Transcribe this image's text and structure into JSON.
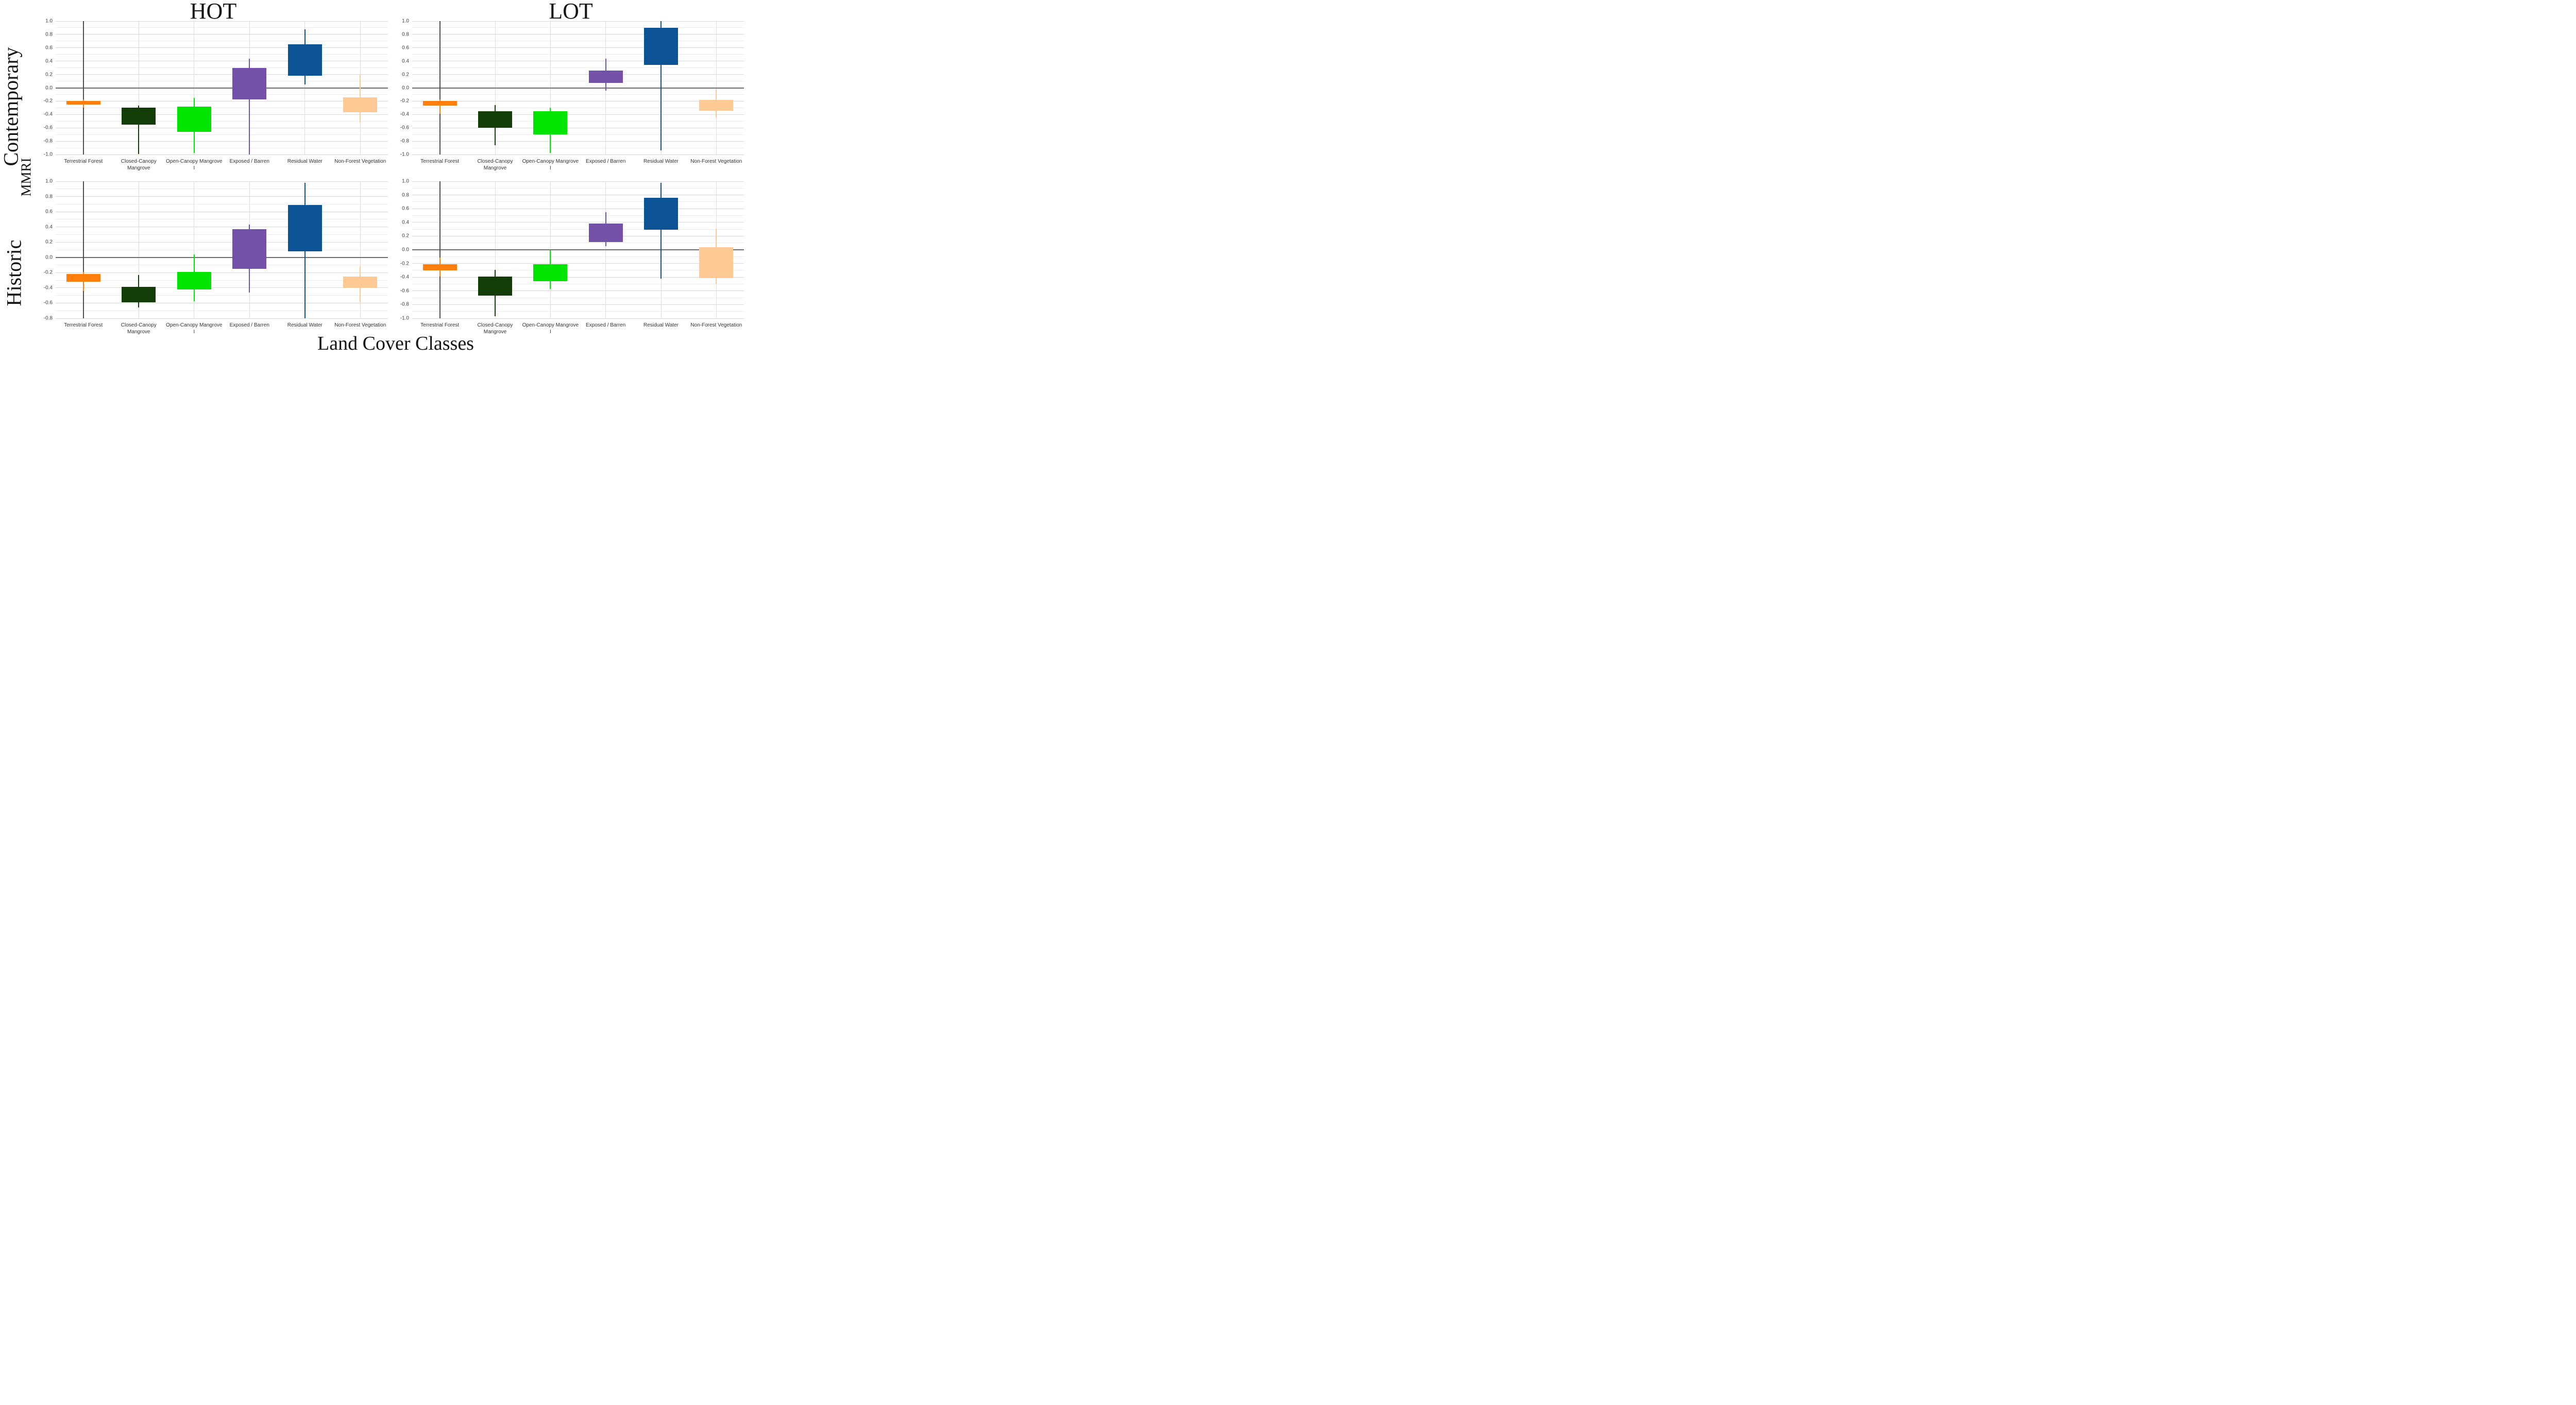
{
  "figure": {
    "hot_title": "HOT",
    "lot_title": "LOT",
    "row_top_label": "Contemporary",
    "row_bottom_label": "Historic",
    "y_axis_title": "MMRI",
    "x_axis_title": "Land Cover Classes"
  },
  "colors": {
    "series": [
      "#fe7e0e",
      "#123d07",
      "#00e400",
      "#7351a8",
      "#0b5394",
      "#fdca96"
    ],
    "terrestrial_forest_range_line": "#4d4d4d",
    "zero_line": "#6e6e6e",
    "grid_major": "#d9d9d9",
    "grid_minor": "#ececec"
  },
  "chart_data": [
    {
      "type": "box",
      "panel": "hot-contemporary",
      "column": "HOT",
      "row": "Contemporary",
      "ylim": [
        -1.0,
        1.0
      ],
      "ytick_step": 0.2,
      "grid_step": 0.1,
      "categories": [
        "Terrestrial Forest",
        "Closed-Canopy\nMangrove",
        "Open-Canopy Mangrove\nI",
        "Exposed / Barren",
        "Residual Water",
        "Non-Forest Vegetation"
      ],
      "boxes": [
        {
          "class": "Terrestrial Forest",
          "box_low": -0.25,
          "box_high": -0.2,
          "whisker_low": -0.3,
          "whisker_high": -0.17,
          "full_range_line": true
        },
        {
          "class": "Closed-Canopy Mangrove",
          "box_low": -0.55,
          "box_high": -0.3,
          "whisker_low": -0.99,
          "whisker_high": -0.27,
          "full_range_line": false
        },
        {
          "class": "Open-Canopy Mangrove I",
          "box_low": -0.66,
          "box_high": -0.28,
          "whisker_low": -0.98,
          "whisker_high": -0.15,
          "full_range_line": false
        },
        {
          "class": "Exposed / Barren",
          "box_low": -0.17,
          "box_high": 0.3,
          "whisker_low": -1.0,
          "whisker_high": 0.44,
          "full_range_line": false
        },
        {
          "class": "Residual Water",
          "box_low": 0.18,
          "box_high": 0.65,
          "whisker_low": 0.05,
          "whisker_high": 0.88,
          "full_range_line": false
        },
        {
          "class": "Non-Forest Vegetation",
          "box_low": -0.37,
          "box_high": -0.14,
          "whisker_low": -0.52,
          "whisker_high": 0.2,
          "full_range_line": false
        }
      ]
    },
    {
      "type": "box",
      "panel": "lot-contemporary",
      "column": "LOT",
      "row": "Contemporary",
      "ylim": [
        -1.0,
        1.0
      ],
      "ytick_step": 0.2,
      "grid_step": 0.1,
      "categories": [
        "Terrestrial Forest",
        "Closed-Canopy\nMangrove",
        "Open-Canopy Mangrove\nI",
        "Exposed / Barren",
        "Residual Water",
        "Non-Forest Vegetation"
      ],
      "boxes": [
        {
          "class": "Terrestrial Forest",
          "box_low": -0.27,
          "box_high": -0.2,
          "whisker_low": -0.39,
          "whisker_high": -0.17,
          "full_range_line": true
        },
        {
          "class": "Closed-Canopy Mangrove",
          "box_low": -0.6,
          "box_high": -0.35,
          "whisker_low": -0.86,
          "whisker_high": -0.26,
          "full_range_line": false
        },
        {
          "class": "Open-Canopy Mangrove I",
          "box_low": -0.7,
          "box_high": -0.35,
          "whisker_low": -0.98,
          "whisker_high": -0.3,
          "full_range_line": false
        },
        {
          "class": "Exposed / Barren",
          "box_low": 0.07,
          "box_high": 0.26,
          "whisker_low": -0.04,
          "whisker_high": 0.44,
          "full_range_line": false
        },
        {
          "class": "Residual Water",
          "box_low": 0.34,
          "box_high": 0.9,
          "whisker_low": -0.94,
          "whisker_high": 1.0,
          "full_range_line": false
        },
        {
          "class": "Non-Forest Vegetation",
          "box_low": -0.34,
          "box_high": -0.18,
          "whisker_low": -0.45,
          "whisker_high": -0.02,
          "full_range_line": false
        }
      ]
    },
    {
      "type": "box",
      "panel": "hot-historic",
      "column": "HOT",
      "row": "Historic",
      "ylim": [
        -0.8,
        1.0
      ],
      "ytick_step": 0.2,
      "grid_step": 0.1,
      "categories": [
        "Terrestrial Forest",
        "Closed-Canopy\nMangrove",
        "Open-Canopy Mangrove\nI",
        "Exposed / Barren",
        "Residual Water",
        "Non-Forest Vegetation"
      ],
      "boxes": [
        {
          "class": "Terrestrial Forest",
          "box_low": -0.32,
          "box_high": -0.22,
          "whisker_low": -0.44,
          "whisker_high": -0.19,
          "full_range_line": true
        },
        {
          "class": "Closed-Canopy Mangrove",
          "box_low": -0.59,
          "box_high": -0.39,
          "whisker_low": -0.66,
          "whisker_high": -0.23,
          "full_range_line": false
        },
        {
          "class": "Open-Canopy Mangrove I",
          "box_low": -0.42,
          "box_high": -0.19,
          "whisker_low": -0.58,
          "whisker_high": 0.04,
          "full_range_line": false
        },
        {
          "class": "Exposed / Barren",
          "box_low": -0.15,
          "box_high": 0.37,
          "whisker_low": -0.46,
          "whisker_high": 0.43,
          "full_range_line": false
        },
        {
          "class": "Residual Water",
          "box_low": 0.08,
          "box_high": 0.69,
          "whisker_low": -0.8,
          "whisker_high": 0.98,
          "full_range_line": false
        },
        {
          "class": "Non-Forest Vegetation",
          "box_low": -0.4,
          "box_high": -0.25,
          "whisker_low": -0.59,
          "whisker_high": -0.11,
          "full_range_line": false
        }
      ]
    },
    {
      "type": "box",
      "panel": "lot-historic",
      "column": "LOT",
      "row": "Historic",
      "ylim": [
        -1.0,
        1.0
      ],
      "ytick_step": 0.2,
      "grid_step": 0.1,
      "categories": [
        "Terrestrial Forest",
        "Closed-Canopy\nMangrove",
        "Open-Canopy Mangrove\nI",
        "Exposed / Barren",
        "Residual Water",
        "Non-Forest Vegetation"
      ],
      "boxes": [
        {
          "class": "Terrestrial Forest",
          "box_low": -0.3,
          "box_high": -0.21,
          "whisker_low": -0.39,
          "whisker_high": -0.11,
          "full_range_line": true
        },
        {
          "class": "Closed-Canopy Mangrove",
          "box_low": -0.67,
          "box_high": -0.39,
          "whisker_low": -0.97,
          "whisker_high": -0.29,
          "full_range_line": false
        },
        {
          "class": "Open-Canopy Mangrove I",
          "box_low": -0.46,
          "box_high": -0.21,
          "whisker_low": -0.57,
          "whisker_high": -0.01,
          "full_range_line": false
        },
        {
          "class": "Exposed / Barren",
          "box_low": 0.11,
          "box_high": 0.38,
          "whisker_low": 0.05,
          "whisker_high": 0.55,
          "full_range_line": false
        },
        {
          "class": "Residual Water",
          "box_low": 0.29,
          "box_high": 0.76,
          "whisker_low": -0.42,
          "whisker_high": 0.98,
          "full_range_line": false
        },
        {
          "class": "Non-Forest Vegetation",
          "box_low": -0.41,
          "box_high": 0.04,
          "whisker_low": -0.5,
          "whisker_high": 0.31,
          "full_range_line": false
        }
      ]
    }
  ]
}
